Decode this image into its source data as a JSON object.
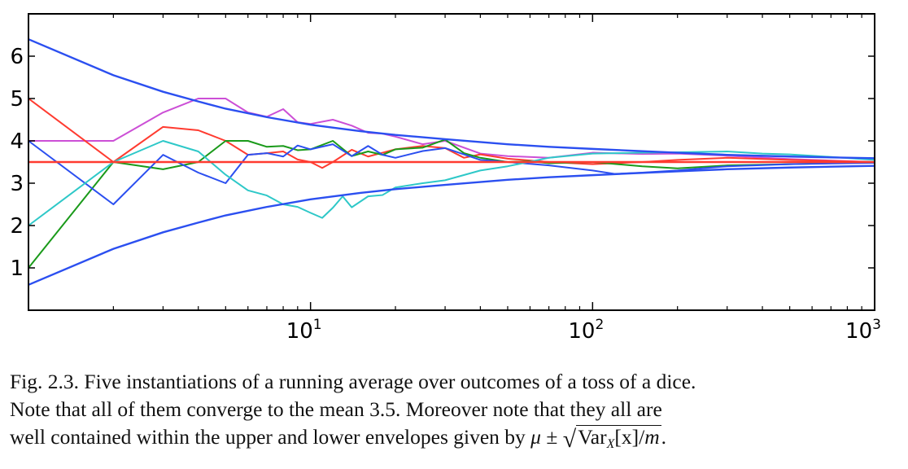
{
  "chart_data": {
    "type": "line",
    "x_scale": "log",
    "xlim": [
      1,
      1000
    ],
    "ylim": [
      0,
      7
    ],
    "x_tick_labels": [
      {
        "value": 10,
        "base": "10",
        "exp": "1"
      },
      {
        "value": 100,
        "base": "10",
        "exp": "2"
      },
      {
        "value": 1000,
        "base": "10",
        "exp": "3"
      }
    ],
    "y_tick_labels": [
      "1",
      "2",
      "3",
      "4",
      "5",
      "6"
    ],
    "y_tick_values": [
      1,
      2,
      3,
      4,
      5,
      6
    ],
    "grid": false,
    "legend": "none",
    "mean_line": {
      "y": 3.5,
      "color": "#ff3b30"
    },
    "envelope_color": "#2b4ff0",
    "upper_envelope": {
      "x": [
        1,
        2,
        3,
        4,
        5,
        7,
        10,
        15,
        20,
        30,
        50,
        70,
        100,
        200,
        300,
        500,
        700,
        1000
      ],
      "y": [
        6.4,
        5.55,
        5.16,
        4.93,
        4.76,
        4.56,
        4.38,
        4.23,
        4.14,
        4.04,
        3.92,
        3.86,
        3.81,
        3.72,
        3.67,
        3.63,
        3.61,
        3.59
      ]
    },
    "lower_envelope": {
      "x": [
        1,
        2,
        3,
        4,
        5,
        7,
        10,
        15,
        20,
        30,
        50,
        70,
        100,
        200,
        300,
        500,
        700,
        1000
      ],
      "y": [
        0.6,
        1.45,
        1.84,
        2.07,
        2.24,
        2.44,
        2.62,
        2.77,
        2.86,
        2.96,
        3.08,
        3.14,
        3.19,
        3.28,
        3.33,
        3.37,
        3.39,
        3.41
      ]
    },
    "series": [
      {
        "color": "#cc4fd6",
        "x": [
          1,
          2,
          3,
          4,
          5,
          6,
          7,
          8,
          9,
          10,
          12,
          14,
          16,
          18,
          20,
          25,
          30,
          40,
          50,
          70,
          100,
          150,
          200,
          300,
          500,
          1000
        ],
        "y": [
          4.0,
          4.0,
          4.67,
          5.0,
          5.0,
          4.67,
          4.57,
          4.75,
          4.44,
          4.4,
          4.5,
          4.36,
          4.19,
          4.17,
          4.1,
          3.92,
          4.0,
          3.7,
          3.64,
          3.6,
          3.72,
          3.69,
          3.7,
          3.65,
          3.57,
          3.5
        ]
      },
      {
        "color": "#ff3b30",
        "x": [
          1,
          2,
          3,
          4,
          5,
          6,
          7,
          8,
          9,
          10,
          11,
          12,
          14,
          16,
          18,
          20,
          25,
          30,
          35,
          40,
          50,
          70,
          100,
          150,
          200,
          300,
          500,
          1000
        ],
        "y": [
          5.0,
          3.5,
          4.33,
          4.25,
          4.0,
          3.67,
          3.71,
          3.75,
          3.56,
          3.5,
          3.36,
          3.5,
          3.79,
          3.63,
          3.72,
          3.8,
          3.88,
          3.83,
          3.6,
          3.68,
          3.58,
          3.5,
          3.45,
          3.5,
          3.55,
          3.6,
          3.55,
          3.5
        ]
      },
      {
        "color": "#1a9a1a",
        "x": [
          1,
          2,
          3,
          4,
          5,
          6,
          7,
          8,
          9,
          10,
          12,
          14,
          16,
          18,
          20,
          25,
          30,
          35,
          40,
          50,
          60,
          70,
          100,
          150,
          200,
          300,
          500,
          1000
        ],
        "y": [
          1.0,
          3.5,
          3.33,
          3.5,
          4.0,
          4.0,
          3.86,
          3.88,
          3.78,
          3.8,
          4.0,
          3.64,
          3.75,
          3.67,
          3.8,
          3.84,
          4.03,
          3.71,
          3.6,
          3.5,
          3.52,
          3.47,
          3.5,
          3.4,
          3.35,
          3.42,
          3.45,
          3.5
        ]
      },
      {
        "color": "#2b4ff0",
        "x": [
          1,
          2,
          3,
          4,
          5,
          6,
          7,
          8,
          9,
          10,
          12,
          14,
          16,
          18,
          20,
          25,
          30,
          40,
          50,
          70,
          100,
          120,
          150,
          200,
          300,
          500,
          1000
        ],
        "y": [
          4.0,
          2.5,
          3.67,
          3.25,
          3.0,
          3.67,
          3.71,
          3.63,
          3.89,
          3.8,
          3.92,
          3.64,
          3.88,
          3.67,
          3.6,
          3.76,
          3.83,
          3.55,
          3.5,
          3.42,
          3.3,
          3.22,
          3.25,
          3.3,
          3.4,
          3.45,
          3.48
        ]
      },
      {
        "color": "#2ec8c8",
        "x": [
          1,
          2,
          3,
          4,
          5,
          6,
          7,
          8,
          9,
          10,
          11,
          12,
          13,
          14,
          16,
          18,
          20,
          25,
          30,
          40,
          50,
          70,
          100,
          150,
          200,
          300,
          400,
          500,
          700,
          1000
        ],
        "y": [
          2.0,
          3.5,
          4.0,
          3.75,
          3.2,
          2.83,
          2.71,
          2.5,
          2.44,
          2.3,
          2.18,
          2.42,
          2.69,
          2.43,
          2.69,
          2.72,
          2.9,
          3.0,
          3.07,
          3.3,
          3.4,
          3.6,
          3.7,
          3.72,
          3.73,
          3.75,
          3.7,
          3.68,
          3.62,
          3.55
        ]
      }
    ]
  },
  "caption": {
    "line1": "Fig. 2.3. Five instantiations of a running average over outcomes of a toss of a dice.",
    "line2": "Note that all of them converge to the mean 3.5. Moreover note that they all are",
    "line3_text": "well contained within the upper and lower envelopes given by",
    "line3_mu": "μ",
    "line3_pm": "±",
    "line3_sqrt_var": "Var",
    "line3_sqrt_sub": "X",
    "line3_sqrt_arg": "[x]",
    "line3_sqrt_slash": "/",
    "line3_sqrt_m": "m",
    "line3_end": "."
  }
}
